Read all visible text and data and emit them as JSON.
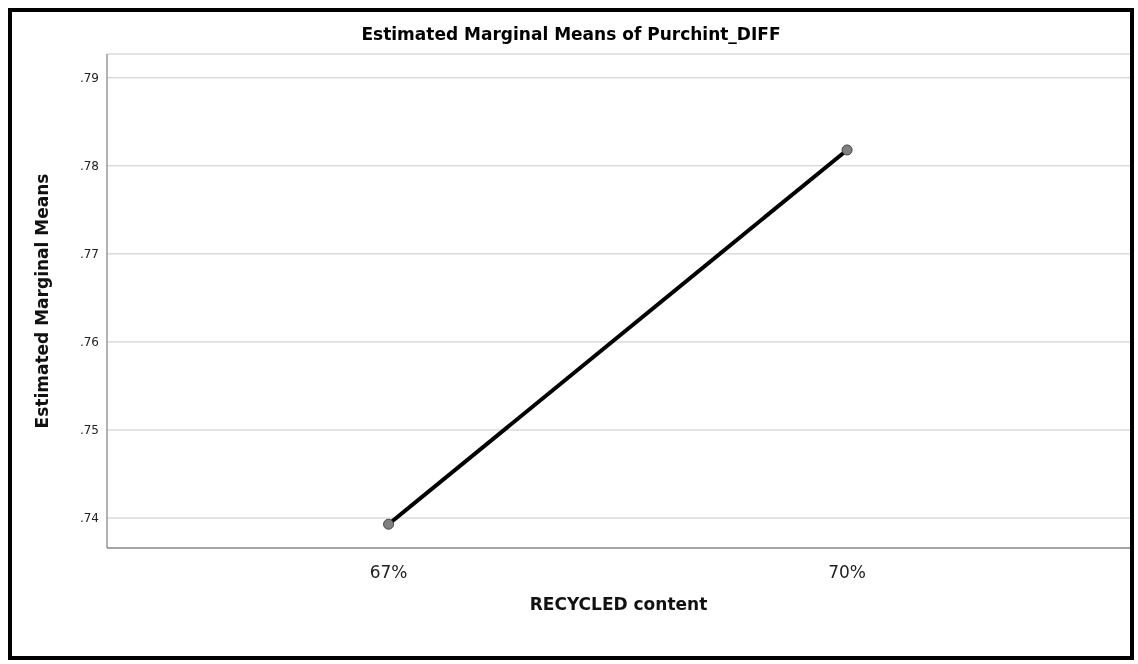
{
  "chart_data": {
    "type": "line",
    "title": "Estimated Marginal Means of Purchint_DIFF",
    "xlabel": "RECYCLED content",
    "ylabel": "Estimated Marginal Means",
    "categories": [
      "67%",
      "70%"
    ],
    "series": [
      {
        "color": "#000000",
        "values": [
          0.7393,
          0.7818
        ]
      }
    ],
    "ylim": [
      0.7366,
      0.7927
    ],
    "yticks": [
      {
        "value": 0.74,
        "label": ".74"
      },
      {
        "value": 0.75,
        "label": ".75"
      },
      {
        "value": 0.76,
        "label": ".76"
      },
      {
        "value": 0.77,
        "label": ".77"
      },
      {
        "value": 0.78,
        "label": ".78"
      },
      {
        "value": 0.79,
        "label": ".79"
      }
    ],
    "grid": "y",
    "marker": "circle",
    "line_style": "solid",
    "legend": false
  }
}
